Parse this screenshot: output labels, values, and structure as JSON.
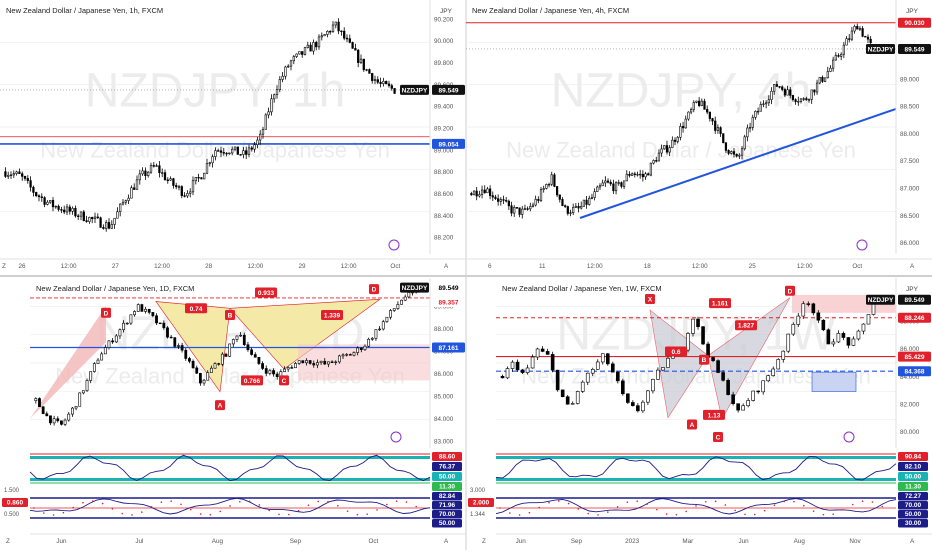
{
  "colors": {
    "up": "#ffffff",
    "down": "#000000",
    "wick": "#000000",
    "red": "#e0202a",
    "blue": "#2255dd",
    "navy": "#1d1d8a",
    "tag_red": "#e0202a",
    "tag_blue": "#2255dd",
    "tag_dark": "#111111",
    "pattern_fill_red": "#f2b6b8",
    "pattern_fill_yellow": "#f4e9a6",
    "box_red": "#f7c7c9",
    "box_blue": "#c9d4f2",
    "grid": "#f2f2f2",
    "watermark": "#ececec",
    "osc_teal": "#19b3b3",
    "osc_green": "#2dba4e",
    "osc_red": "#e0202a",
    "osc_blue": "#1d1d8a"
  },
  "chart_data": [
    {
      "type": "candlestick",
      "panel": "top-left",
      "title": "New Zealand Dollar / Japanese Yen, 1h, FXCM",
      "watermark": "NZDJPY, 1h",
      "watermark_sub": "New Zealand Dollar / Japanese Yen",
      "currency": "JPY",
      "x_ticks": [
        "26",
        "12:00",
        "27",
        "12:00",
        "28",
        "12:00",
        "29",
        "12:00",
        "Oct"
      ],
      "y_ticks": [
        "90.200",
        "90.000",
        "89.800",
        "89.600",
        "89.400",
        "89.200",
        "89.000",
        "88.800",
        "88.600",
        "88.400",
        "88.200"
      ],
      "y_range": [
        88.1,
        90.3
      ],
      "price_label": "NZDJPY",
      "price_value": "89.549",
      "level_blue": "89.054",
      "level_red_value": 89.12,
      "scale_letter": "A",
      "tz_letter": "Z",
      "path": [
        88.8,
        88.76,
        88.6,
        88.5,
        88.45,
        88.4,
        88.35,
        88.3,
        88.55,
        88.75,
        88.85,
        88.7,
        88.6,
        88.75,
        89.0,
        89.0,
        88.95,
        89.1,
        89.55,
        89.8,
        89.9,
        90.0,
        90.15,
        89.95,
        89.75,
        89.6,
        89.55
      ],
      "candles": 140
    },
    {
      "type": "candlestick",
      "panel": "top-right",
      "title": "New Zealand Dollar / Japanese Yen, 4h, FXCM",
      "watermark": "NZDJPY, 4h",
      "watermark_sub": "New Zealand Dollar / Japanese Yen",
      "currency": "JPY",
      "x_ticks": [
        "6",
        "11",
        "12:00",
        "18",
        "12:00",
        "25",
        "12:00",
        "Oct"
      ],
      "y_ticks": [
        "90.000",
        "89.500",
        "89.000",
        "88.500",
        "88.000",
        "87.500",
        "87.000",
        "86.500",
        "86.000"
      ],
      "y_range": [
        85.9,
        90.3
      ],
      "price_label": "NZDJPY",
      "price_value": "89.549",
      "level_red": "90.030",
      "trendline": {
        "from": 86.45,
        "to": 88.45
      },
      "scale_letter": "A",
      "path": [
        86.9,
        87.0,
        86.8,
        86.6,
        86.55,
        86.8,
        87.2,
        86.6,
        86.6,
        86.8,
        87.1,
        87.0,
        87.3,
        87.2,
        87.6,
        87.8,
        88.2,
        88.6,
        88.3,
        87.8,
        87.5,
        88.2,
        88.6,
        88.9,
        88.7,
        88.6,
        88.9,
        89.2,
        89.6,
        90.0,
        89.6
      ],
      "candles": 150
    },
    {
      "type": "candlestick",
      "panel": "bottom-left",
      "title": "New Zealand Dollar / Japanese Yen, 1D, FXCM",
      "watermark": "NZDJPY, 1D",
      "watermark_sub": "New Zealand Dollar / Japanese Yen",
      "currency": "JPY",
      "x_ticks": [
        "Jun",
        "Jul",
        "Aug",
        "Sep",
        "Oct"
      ],
      "y_ticks": [
        "89.000",
        "88.000",
        "87.000",
        "86.000",
        "85.000",
        "84.000",
        "83.000"
      ],
      "y_range": [
        82.7,
        89.8
      ],
      "price_label": "NZDJPY",
      "price_value": "89.549",
      "level_red": "89.357",
      "level_blue": "87.161",
      "scale_letter": "A",
      "tz_letter": "Z",
      "pattern_labels": [
        "D",
        "A",
        "0.74",
        "B",
        "0.933",
        "1.339",
        "0.766",
        "C",
        "D"
      ],
      "path": [
        84.8,
        84.0,
        83.7,
        84.5,
        85.6,
        86.8,
        87.5,
        88.2,
        89.0,
        88.6,
        88.0,
        87.3,
        86.6,
        85.6,
        86.3,
        86.9,
        87.9,
        86.8,
        86.2,
        85.9,
        86.3,
        86.6,
        86.5,
        86.4,
        86.7,
        86.9,
        87.3,
        88.0,
        88.7,
        89.4,
        89.55
      ],
      "candles": 105,
      "rsi_ticks": [
        "88.60",
        "76.37",
        "50.00",
        "11.30"
      ],
      "stoch_ticks": [
        "1.500",
        "0.860",
        "0.500"
      ],
      "stoch_right": [
        "82.84",
        "71.96",
        "70.00",
        "50.00"
      ]
    },
    {
      "type": "candlestick",
      "panel": "bottom-right",
      "title": "New Zealand Dollar / Japanese Yen, 1W, FXCM",
      "watermark": "NZDJPY, 1W",
      "watermark_sub": "New Zealand Dollar / Japanese Yen",
      "currency": "JPY",
      "x_ticks": [
        "Jun",
        "Sep",
        "2023",
        "Mar",
        "Jun",
        "Aug",
        "Nov"
      ],
      "y_ticks": [
        "88.000",
        "86.000",
        "84.000",
        "82.000",
        "80.000"
      ],
      "y_range": [
        78.8,
        90.4
      ],
      "price_label": "NZDJPY",
      "price_value": "89.549",
      "level_red_dash": "88.246",
      "level_red": "85.429",
      "level_blue_dash": "84.368",
      "scale_letter": "A",
      "tz_letter": "Z",
      "pattern_labels": [
        "X",
        "0.6",
        "B",
        "1.161",
        "1.827",
        "D",
        "A",
        "1.13",
        "C"
      ],
      "path": [
        84.0,
        85.0,
        84.0,
        86.0,
        85.5,
        83.0,
        81.5,
        83.5,
        84.5,
        85.5,
        84.0,
        82.0,
        81.5,
        83.0,
        84.5,
        85.5,
        86.0,
        88.4,
        86.0,
        84.5,
        83.0,
        81.3,
        82.5,
        83.3,
        84.5,
        86.0,
        88.0,
        89.8,
        88.0,
        86.5,
        87.0,
        86.2,
        87.5,
        89.5
      ],
      "candles": 75,
      "rsi_ticks": [
        "90.84",
        "82.10",
        "50.00",
        "11.30"
      ],
      "stoch_ticks": [
        "3.000",
        "2.000",
        "1.344"
      ],
      "stoch_right": [
        "72.27",
        "70.00",
        "50.00",
        "30.00"
      ]
    }
  ]
}
